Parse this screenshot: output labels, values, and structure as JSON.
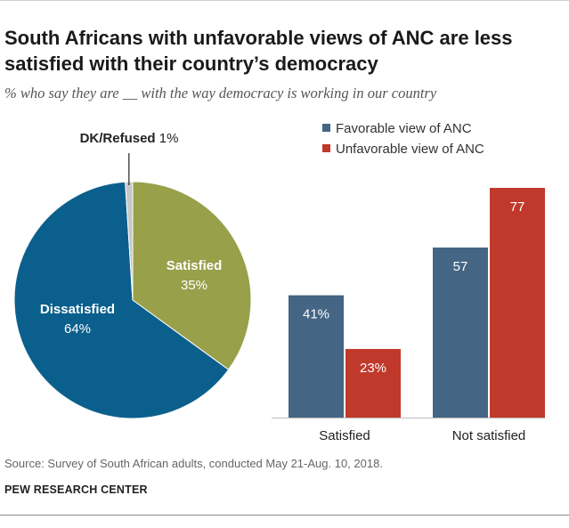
{
  "title": "South Africans with unfavorable views of ANC are less satisfied with their country’s democracy",
  "subtitle": "% who say they are __ with the way democracy is working in our country",
  "source": "Source: Survey of South African adults, conducted May 21-Aug. 10, 2018.",
  "brand": "PEW RESEARCH CENTER",
  "colors": {
    "favorable": "#456584",
    "unfavorable": "#c0392b",
    "satisfied": "#98a04a",
    "dissatisfied": "#0b5f8d",
    "dk_refused": "#c7c7c7"
  },
  "chart_data": [
    {
      "type": "pie",
      "slices": [
        {
          "label": "Satisfied",
          "value": 35,
          "display": "35%"
        },
        {
          "label": "Dissatisfied",
          "value": 64,
          "display": "64%"
        },
        {
          "label": "DK/Refused",
          "value": 1,
          "display": "1%"
        }
      ]
    },
    {
      "type": "bar",
      "categories": [
        "Satisfied",
        "Not satisfied"
      ],
      "series": [
        {
          "name": "Favorable view of ANC",
          "values": [
            41,
            57
          ],
          "labels": [
            "41%",
            "57"
          ]
        },
        {
          "name": "Unfavorable view of ANC",
          "values": [
            23,
            77
          ],
          "labels": [
            "23%",
            "77"
          ]
        }
      ],
      "ylim": [
        0,
        77
      ],
      "legend": "top"
    }
  ]
}
